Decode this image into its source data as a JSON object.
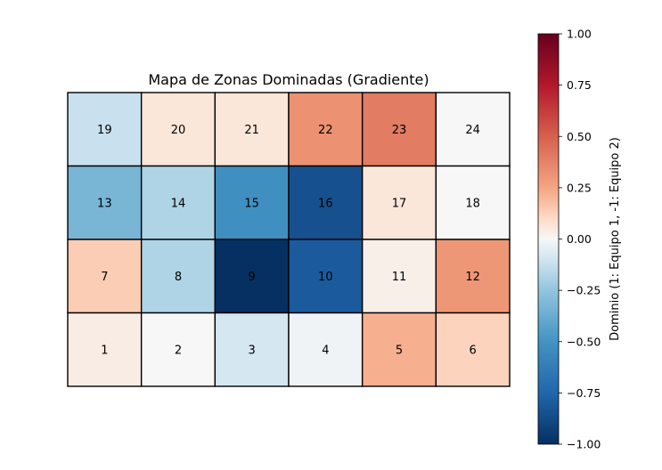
{
  "chart_data": {
    "type": "heatmap",
    "title": "Mapa de Zonas Dominadas (Gradiente)",
    "grid_rows": 4,
    "grid_cols": 6,
    "cells": [
      {
        "label": "19",
        "row": 0,
        "col": 0,
        "value": -0.12
      },
      {
        "label": "20",
        "row": 0,
        "col": 1,
        "value": 0.06
      },
      {
        "label": "21",
        "row": 0,
        "col": 2,
        "value": 0.06
      },
      {
        "label": "22",
        "row": 0,
        "col": 3,
        "value": 0.32
      },
      {
        "label": "23",
        "row": 0,
        "col": 4,
        "value": 0.4
      },
      {
        "label": "24",
        "row": 0,
        "col": 5,
        "value": 0.0
      },
      {
        "label": "13",
        "row": 1,
        "col": 0,
        "value": -0.33
      },
      {
        "label": "14",
        "row": 1,
        "col": 1,
        "value": -0.18
      },
      {
        "label": "15",
        "row": 1,
        "col": 2,
        "value": -0.52
      },
      {
        "label": "16",
        "row": 1,
        "col": 3,
        "value": -0.85
      },
      {
        "label": "17",
        "row": 1,
        "col": 4,
        "value": 0.06
      },
      {
        "label": "18",
        "row": 1,
        "col": 5,
        "value": 0.0
      },
      {
        "label": "7",
        "row": 2,
        "col": 0,
        "value": 0.14
      },
      {
        "label": "8",
        "row": 2,
        "col": 1,
        "value": -0.18
      },
      {
        "label": "9",
        "row": 2,
        "col": 2,
        "value": -1.0
      },
      {
        "label": "10",
        "row": 2,
        "col": 3,
        "value": -0.8
      },
      {
        "label": "11",
        "row": 2,
        "col": 4,
        "value": 0.03
      },
      {
        "label": "12",
        "row": 2,
        "col": 5,
        "value": 0.3
      },
      {
        "label": "1",
        "row": 3,
        "col": 0,
        "value": 0.04
      },
      {
        "label": "2",
        "row": 3,
        "col": 1,
        "value": 0.0
      },
      {
        "label": "3",
        "row": 3,
        "col": 2,
        "value": -0.09
      },
      {
        "label": "4",
        "row": 3,
        "col": 3,
        "value": -0.02
      },
      {
        "label": "5",
        "row": 3,
        "col": 4,
        "value": 0.22
      },
      {
        "label": "6",
        "row": 3,
        "col": 5,
        "value": 0.12
      }
    ],
    "colorbar": {
      "colormap": "RdBu_r",
      "label": "Dominio (1: Equipo 1, -1: Equipo 2)",
      "vmin": -1.0,
      "vmax": 1.0,
      "ticks": [
        {
          "value": 1.0,
          "label": "1.00"
        },
        {
          "value": 0.75,
          "label": "0.75"
        },
        {
          "value": 0.5,
          "label": "0.50"
        },
        {
          "value": 0.25,
          "label": "0.25"
        },
        {
          "value": 0.0,
          "label": "0.00"
        },
        {
          "value": -0.25,
          "label": "−0.25"
        },
        {
          "value": -0.5,
          "label": "−0.50"
        },
        {
          "value": -0.75,
          "label": "−0.75"
        },
        {
          "value": -1.0,
          "label": "−1.00"
        }
      ]
    },
    "grid_lines": false,
    "legend": "colorbar-right"
  }
}
